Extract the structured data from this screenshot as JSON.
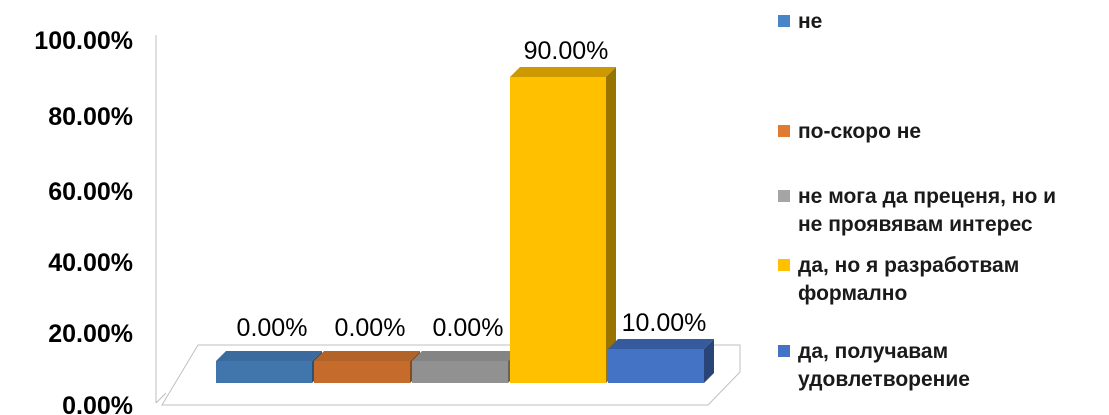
{
  "chart_data": {
    "type": "bar",
    "title": "",
    "xlabel": "",
    "ylabel": "",
    "ylim": [
      0,
      100
    ],
    "y_ticks": [
      "0.00%",
      "20.00%",
      "40.00%",
      "60.00%",
      "80.00%",
      "100.00%"
    ],
    "legend_position": "right",
    "grid": false,
    "three_d": true,
    "series": [
      {
        "name": "не",
        "value": 0,
        "label": "0.00%",
        "color": "#4A86C5"
      },
      {
        "name": "по-скоро не",
        "value": 0,
        "label": "0.00%",
        "color": "#E07B32"
      },
      {
        "name": "не мога да преценя, но и\nне проявявам интерес",
        "value": 0,
        "label": "0.00%",
        "color": "#A5A5A5"
      },
      {
        "name": "да, но я разработвам\nформално",
        "value": 90,
        "label": "90.00%",
        "color": "#FFC000"
      },
      {
        "name": "да, получавам\nудовлетворение",
        "value": 10,
        "label": "10.00%",
        "color": "#4472C4"
      }
    ]
  }
}
